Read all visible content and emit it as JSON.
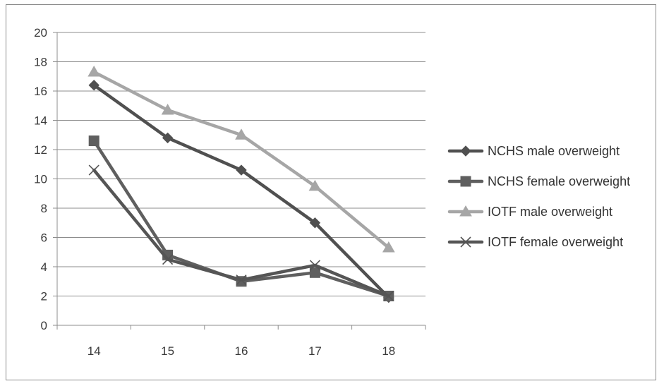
{
  "chart_data": {
    "type": "line",
    "title": "",
    "xlabel": "",
    "ylabel": "",
    "x": [
      "14",
      "15",
      "16",
      "17",
      "18"
    ],
    "ylim": [
      0,
      20
    ],
    "ytick_step": 2,
    "grid": "horizontal",
    "legend_position": "right",
    "series": [
      {
        "name": "NCHS male overweight",
        "values": [
          16.4,
          12.8,
          10.6,
          7.0,
          1.9
        ],
        "marker": "diamond",
        "color": "#505050"
      },
      {
        "name": "NCHS female overweight",
        "values": [
          12.6,
          4.8,
          3.0,
          3.6,
          2.0
        ],
        "marker": "square",
        "color": "#5f5f5f"
      },
      {
        "name": "IOTF male overweight",
        "values": [
          17.3,
          14.7,
          13.0,
          9.5,
          5.3
        ],
        "marker": "triangle",
        "color": "#a6a6a6"
      },
      {
        "name": "IOTF female overweight",
        "values": [
          10.6,
          4.5,
          3.1,
          4.1,
          2.0
        ],
        "marker": "x",
        "color": "#555555"
      }
    ]
  }
}
